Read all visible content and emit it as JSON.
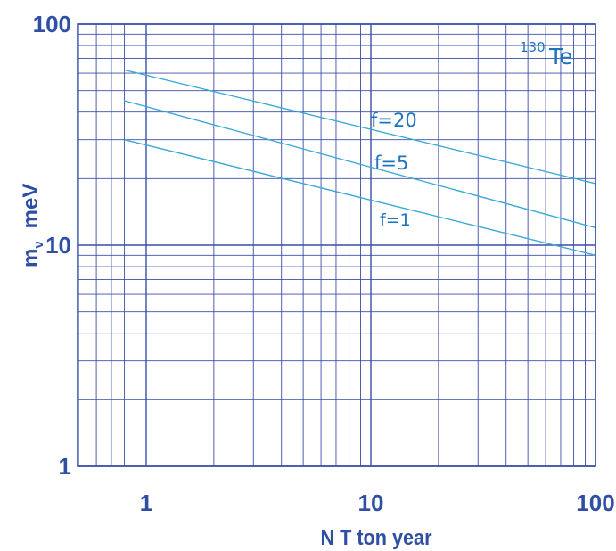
{
  "chart_data": {
    "type": "line",
    "xscale": "log",
    "yscale": "log",
    "xlim": [
      0.5,
      100
    ],
    "ylim": [
      1,
      100
    ],
    "grid": true,
    "xlabel": "N T ton year",
    "ylabel": "m",
    "ylabel_sub": "ν",
    "ylabel_unit": "meV",
    "x_ticks": [
      {
        "value": 1,
        "label": "1"
      },
      {
        "value": 10,
        "label": "10"
      },
      {
        "value": 100,
        "label": "100"
      }
    ],
    "y_ticks": [
      {
        "value": 1,
        "label": "1"
      },
      {
        "value": 10,
        "label": "10"
      },
      {
        "value": 100,
        "label": "100"
      }
    ],
    "annotation": {
      "mass_number": "130",
      "element": "Te"
    },
    "series": [
      {
        "name": "f=20",
        "x": [
          0.8,
          100
        ],
        "y": [
          62,
          19
        ]
      },
      {
        "name": "f=5",
        "x": [
          0.8,
          100
        ],
        "y": [
          45,
          12
        ]
      },
      {
        "name": "f=1",
        "x": [
          0.8,
          100
        ],
        "y": [
          30,
          9
        ]
      }
    ],
    "colors": {
      "grid": "#3a4fa8",
      "line": "#3aa8d8",
      "text": "#2f4fa5",
      "label": "#1e73be"
    }
  }
}
